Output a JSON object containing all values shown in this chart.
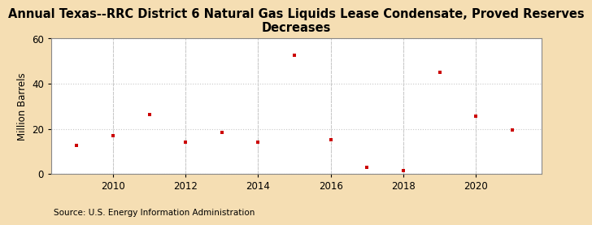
{
  "title": "Annual Texas--RRC District 6 Natural Gas Liquids Lease Condensate, Proved Reserves\nDecreases",
  "ylabel": "Million Barrels",
  "source": "Source: U.S. Energy Information Administration",
  "years": [
    2009,
    2010,
    2011,
    2012,
    2013,
    2014,
    2015,
    2016,
    2017,
    2018,
    2019,
    2020,
    2021
  ],
  "values": [
    12.5,
    17.0,
    26.5,
    14.0,
    18.5,
    14.0,
    52.5,
    15.0,
    3.0,
    1.5,
    45.0,
    25.5,
    19.5
  ],
  "marker_color": "#cc0000",
  "marker": "s",
  "marker_size": 3.5,
  "figure_bg": "#f5deb3",
  "plot_bg": "#ffffff",
  "grid_color": "#c8c8c8",
  "spine_color": "#888888",
  "xlim": [
    2008.3,
    2021.8
  ],
  "ylim": [
    0,
    60
  ],
  "yticks": [
    0,
    20,
    40,
    60
  ],
  "xticks": [
    2010,
    2012,
    2014,
    2016,
    2018,
    2020
  ],
  "title_fontsize": 10.5,
  "ylabel_fontsize": 8.5,
  "tick_fontsize": 8.5,
  "source_fontsize": 7.5
}
